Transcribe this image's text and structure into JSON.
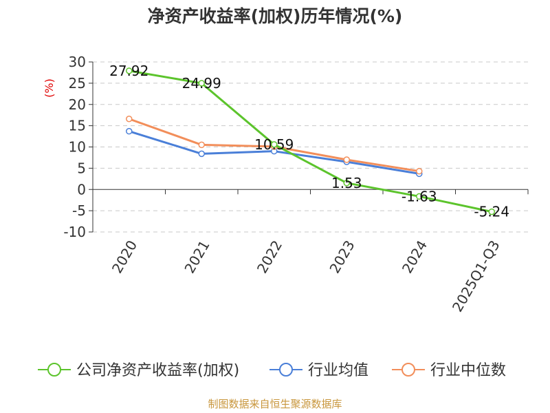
{
  "chart_data": {
    "type": "line",
    "title": "净资产收益率(加权)历年情况(%)",
    "ylabel": "(%)",
    "xlabel": "",
    "categories": [
      "2020",
      "2021",
      "2022",
      "2023",
      "2024",
      "2025Q1-Q3"
    ],
    "ylim": [
      -10,
      30
    ],
    "yticks": [
      30,
      25,
      20,
      15,
      10,
      5,
      0,
      -5,
      -10
    ],
    "series": [
      {
        "name": "公司净资产收益率(加权)",
        "color": "#5cc42c",
        "values": [
          27.92,
          24.99,
          10.59,
          1.53,
          -1.63,
          -5.24
        ],
        "labels": [
          "27.92",
          "24.99",
          "10.59",
          "1.53",
          "-1.63",
          "-5.24"
        ]
      },
      {
        "name": "行业均值",
        "color": "#4a7fd8",
        "values": [
          13.7,
          8.4,
          9.0,
          6.5,
          3.7,
          null
        ]
      },
      {
        "name": "行业中位数",
        "color": "#f28e5a",
        "values": [
          16.6,
          10.5,
          10.1,
          7.0,
          4.3,
          null
        ]
      }
    ],
    "grid": true,
    "legend_position": "bottom"
  },
  "footer": {
    "source": "制图数据来自恒生聚源数据库"
  }
}
